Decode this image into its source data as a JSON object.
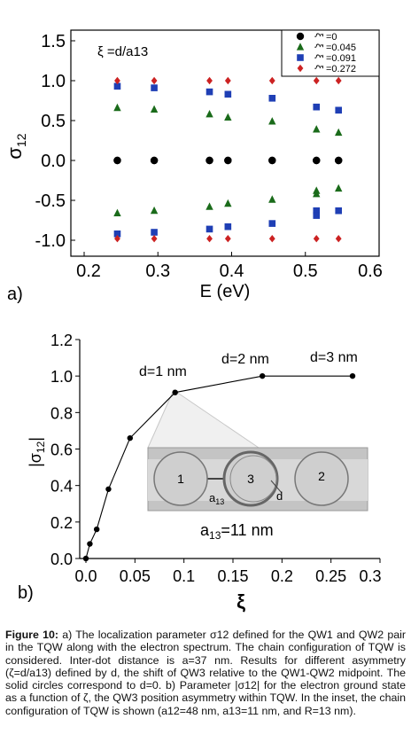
{
  "chart_data": [
    {
      "type": "scatter",
      "panel_label": "a)",
      "annotation": "ξ =d/a13",
      "xlabel": "E (eV)",
      "ylabel": "σ12",
      "xlim": [
        0.2,
        0.6
      ],
      "ylim": [
        -1.05,
        1.6
      ],
      "xticks": [
        "0.2",
        "0.3",
        "0.4",
        "0.5",
        "0.6"
      ],
      "yticks": [
        "1.5",
        "1.0",
        "0.5",
        "0.0",
        "-0.5",
        "-1.0"
      ],
      "x": [
        0.245,
        0.295,
        0.37,
        0.395,
        0.455,
        0.515,
        0.545
      ],
      "legend_symbol": "ξ",
      "series": [
        {
          "name": "=0",
          "color": "#000000",
          "marker": "circle",
          "upper": [
            0,
            0,
            0,
            0,
            0,
            0,
            0
          ],
          "lower": [
            0,
            0,
            0,
            0,
            0,
            0,
            0
          ]
        },
        {
          "name": "=0.045",
          "color": "#1a6b1a",
          "marker": "triangle",
          "upper": [
            0.66,
            0.64,
            0.58,
            0.54,
            0.49,
            0.39,
            0.35
          ],
          "lower": [
            -0.66,
            -0.63,
            -0.58,
            -0.54,
            -0.49,
            [
              -0.38,
              -0.42
            ],
            -0.35
          ]
        },
        {
          "name": "=0.091",
          "color": "#1f3fb5",
          "marker": "square",
          "upper": [
            0.93,
            0.91,
            0.86,
            0.83,
            0.78,
            0.67,
            0.63
          ],
          "lower": [
            -0.92,
            -0.9,
            -0.86,
            -0.83,
            -0.79,
            [
              -0.63,
              -0.69
            ],
            -0.63
          ]
        },
        {
          "name": "=0.272",
          "color": "#cc2222",
          "marker": "diamond",
          "upper": [
            1.0,
            1.0,
            1.0,
            1.0,
            1.0,
            1.0,
            1.0
          ],
          "lower": [
            -0.98,
            -0.98,
            -0.98,
            -0.98,
            -0.98,
            -0.98,
            -0.98
          ]
        }
      ]
    },
    {
      "type": "line",
      "panel_label": "b)",
      "xlabel": "ξ",
      "ylabel": "|σ12|",
      "xlim": [
        0.0,
        0.3
      ],
      "ylim": [
        0.0,
        1.2
      ],
      "xticks": [
        "0.0",
        "0.05",
        "0.1",
        "0.15",
        "0.2",
        "0.25",
        "0.3"
      ],
      "yticks": [
        "1.2",
        "1.0",
        "0.8",
        "0.6",
        "0.4",
        "0.2",
        "0.0"
      ],
      "series": [
        {
          "x": [
            0.0,
            0.004,
            0.011,
            0.023,
            0.045,
            0.091,
            0.18,
            0.272
          ],
          "y": [
            0.0,
            0.08,
            0.16,
            0.38,
            0.66,
            0.91,
            1.0,
            1.0
          ]
        }
      ],
      "annotations": [
        "d=1 nm",
        "d=2 nm",
        "d=3 nm",
        "a13=11 nm"
      ],
      "inset": {
        "dot_labels": [
          "1",
          "3",
          "2"
        ],
        "a13_label": "a13",
        "d_label": "d"
      }
    }
  ],
  "caption": {
    "lead": "Figure 10:",
    "text": " a) The localization parameter σ12 defined for the QW1 and QW2 pair in the TQW along with the electron spectrum. The chain configuration of TQW is considered. Inter-dot distance is a=37 nm. Results for different asymmetry (ζ=d/a13) defined by d, the shift of QW3 relative to the QW1-QW2 midpoint. The solid circles correspond to d=0. b) Parameter |σ12| for the electron ground state as a function of ζ, the QW3 position asymmetry within TQW. In the inset, the chain configuration of TQW is shown (a12=48 nm, a13=11 nm, and R=13 nm)."
  }
}
